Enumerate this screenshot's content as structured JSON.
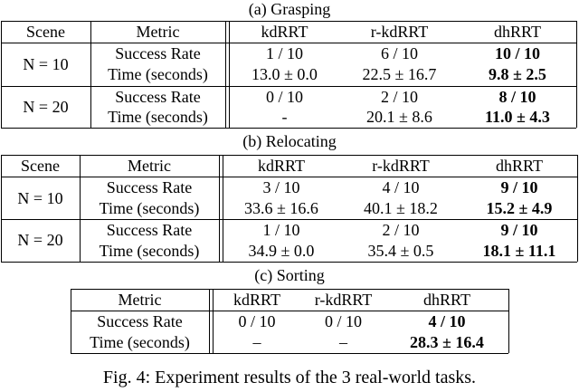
{
  "table_a": {
    "caption": "(a) Grasping",
    "headers": [
      "Scene",
      "Metric",
      "kdRRT",
      "r-kdRRT",
      "dhRRT"
    ],
    "groups": [
      {
        "scene": "N = 10",
        "rows": [
          {
            "metric": "Success Rate",
            "kdrrt": "1 / 10",
            "rkdrrt": "6 / 10",
            "dhrrt": "10 / 10"
          },
          {
            "metric": "Time (seconds)",
            "kdrrt": "13.0 ± 0.0",
            "rkdrrt": "22.5 ± 16.7",
            "dhrrt": "9.8 ± 2.5"
          }
        ]
      },
      {
        "scene": "N = 20",
        "rows": [
          {
            "metric": "Success Rate",
            "kdrrt": "0 / 10",
            "rkdrrt": "2 / 10",
            "dhrrt": "8 / 10"
          },
          {
            "metric": "Time (seconds)",
            "kdrrt": "-",
            "rkdrrt": "20.1 ± 8.6",
            "dhrrt": "11.0 ± 4.3"
          }
        ]
      }
    ]
  },
  "table_b": {
    "caption": "(b) Relocating",
    "headers": [
      "Scene",
      "Metric",
      "kdRRT",
      "r-kdRRT",
      "dhRRT"
    ],
    "groups": [
      {
        "scene": "N = 10",
        "rows": [
          {
            "metric": "Success Rate",
            "kdrrt": "3 / 10",
            "rkdrrt": "4 / 10",
            "dhrrt": "9 / 10"
          },
          {
            "metric": "Time (seconds)",
            "kdrrt": "33.6 ± 16.6",
            "rkdrrt": "40.1 ± 18.2",
            "dhrrt": "15.2 ± 4.9"
          }
        ]
      },
      {
        "scene": "N = 20",
        "rows": [
          {
            "metric": "Success Rate",
            "kdrrt": "1 / 10",
            "rkdrrt": "2 / 10",
            "dhrrt": "9 / 10"
          },
          {
            "metric": "Time (seconds)",
            "kdrrt": "34.9 ± 0.0",
            "rkdrrt": "35.4 ± 0.5",
            "dhrrt": "18.1 ± 11.1"
          }
        ]
      }
    ]
  },
  "table_c": {
    "caption": "(c) Sorting",
    "headers": [
      "Metric",
      "kdRRT",
      "r-kdRRT",
      "dhRRT"
    ],
    "rows": [
      {
        "metric": "Success Rate",
        "kdrrt": "0 / 10",
        "rkdrrt": "0 / 10",
        "dhrrt": "4 / 10"
      },
      {
        "metric": "Time (seconds)",
        "kdrrt": "–",
        "rkdrrt": "–",
        "dhrrt": "28.3 ± 16.4"
      }
    ]
  },
  "figure_caption": "Fig. 4: Experiment results of the 3 real-world tasks."
}
